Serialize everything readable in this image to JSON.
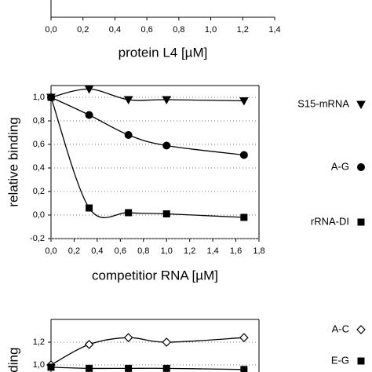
{
  "chart_data": [
    {
      "type": "scatter",
      "xlabel": "protein L4 [µM]",
      "xlim": [
        0,
        1.4
      ],
      "xticks": [
        {
          "value": 0,
          "label": "0,0"
        },
        {
          "value": 0.2,
          "label": "0,2"
        },
        {
          "value": 0.4,
          "label": "0,4"
        },
        {
          "value": 0.6,
          "label": "0,6"
        },
        {
          "value": 0.8,
          "label": "0,8"
        },
        {
          "value": 1.0,
          "label": "1,0"
        },
        {
          "value": 1.2,
          "label": "1,2"
        },
        {
          "value": 1.4,
          "label": "1,4"
        }
      ],
      "x": [],
      "series": []
    },
    {
      "type": "scatter",
      "xlabel": "competitior RNA [µM]",
      "ylabel": "relative binding",
      "xlim": [
        0,
        1.8
      ],
      "ylim": [
        -0.2,
        1.1
      ],
      "grid": true,
      "fit_line": true,
      "xticks": [
        {
          "value": 0,
          "label": "0,0"
        },
        {
          "value": 0.2,
          "label": "0,2"
        },
        {
          "value": 0.4,
          "label": "0,4"
        },
        {
          "value": 0.6,
          "label": "0,6"
        },
        {
          "value": 0.8,
          "label": "0,8"
        },
        {
          "value": 1.0,
          "label": "1,0"
        },
        {
          "value": 1.2,
          "label": "1,2"
        },
        {
          "value": 1.4,
          "label": "1,4"
        },
        {
          "value": 1.6,
          "label": "1,6"
        },
        {
          "value": 1.8,
          "label": "1,8"
        }
      ],
      "yticks": [
        {
          "value": -0.2,
          "label": "-0,2"
        },
        {
          "value": 0,
          "label": "0,0"
        },
        {
          "value": 0.2,
          "label": "0,2"
        },
        {
          "value": 0.4,
          "label": "0,4"
        },
        {
          "value": 0.6,
          "label": "0,6"
        },
        {
          "value": 0.8,
          "label": "0,8"
        },
        {
          "value": 1.0,
          "label": "1,0"
        }
      ],
      "x": [
        0,
        0.33,
        0.67,
        1.0,
        1.67
      ],
      "series": [
        {
          "name": "S15-mRNA",
          "marker": "triangle-down",
          "color": "#000000",
          "values": [
            1.0,
            1.07,
            0.98,
            0.98,
            0.97
          ]
        },
        {
          "name": "A-G",
          "marker": "circle",
          "color": "#000000",
          "values": [
            1.0,
            0.85,
            0.68,
            0.59,
            0.51
          ]
        },
        {
          "name": "rRNA-DI",
          "marker": "square",
          "color": "#000000",
          "values": [
            1.0,
            0.06,
            0.02,
            0.01,
            -0.02
          ]
        }
      ]
    },
    {
      "type": "scatter",
      "ylabel": "binding",
      "xlim": [
        0,
        1.8
      ],
      "ylim": [
        0.9,
        1.4
      ],
      "grid": true,
      "fit_line": true,
      "yticks": [
        {
          "value": 1.0,
          "label": "1,0"
        },
        {
          "value": 1.2,
          "label": "1,2"
        }
      ],
      "x": [
        0,
        0.33,
        0.67,
        1.0,
        1.67
      ],
      "series": [
        {
          "name": "A-C",
          "marker": "diamond-open",
          "color": "#000000",
          "values": [
            1.0,
            1.18,
            1.24,
            1.2,
            1.24
          ]
        },
        {
          "name": "E-G",
          "marker": "square",
          "color": "#000000",
          "values": [
            0.98,
            0.97,
            0.97,
            0.97,
            0.96
          ]
        }
      ]
    }
  ]
}
